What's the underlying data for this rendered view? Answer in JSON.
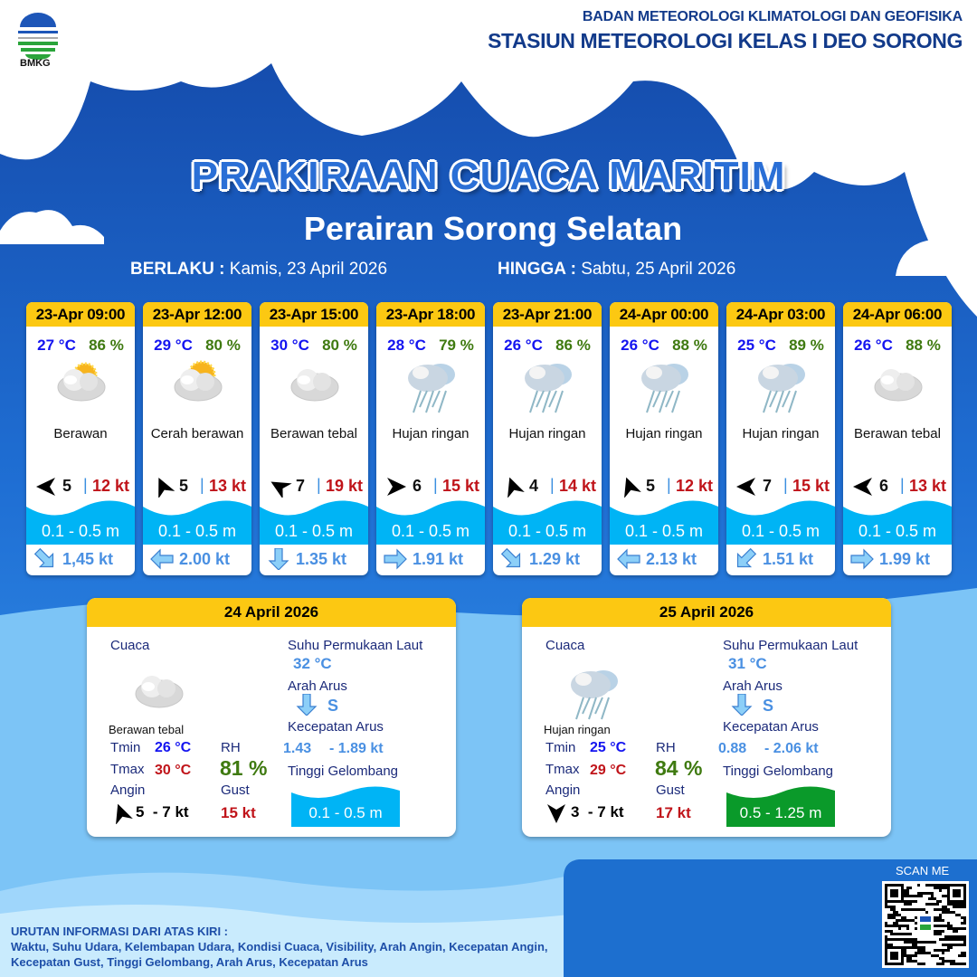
{
  "header": {
    "org_line1": "BADAN METEOROLOGI KLIMATOLOGI DAN GEOFISIKA",
    "org_line2": "STASIUN METEOROLOGI KELAS I DEO SORONG",
    "logo_text": "BMKG"
  },
  "title": "PRAKIRAAN CUACA MARITIM",
  "subtitle": "Perairan Sorong Selatan",
  "validity": {
    "from_label": "BERLAKU :",
    "from_value": "Kamis, 23 April 2026",
    "until_label": "HINGGA :",
    "until_value": "Sabtu, 25 April 2026"
  },
  "colors": {
    "header_yellow": "#fcc812",
    "temp": "#1414f0",
    "humidity": "#3f7a10",
    "gust": "#c0141a",
    "wave_low": "#00b4f5",
    "wave_moderate": "#0a9a2a",
    "current": "#4a90e2"
  },
  "forecasts": [
    {
      "time": "23-Apr 09:00",
      "temp": "27 °C",
      "rh": "86 %",
      "icon": "partly-cloudy",
      "weather": "Berawan",
      "wind_dir_deg": 180,
      "wind": "5",
      "gust": "12 kt",
      "wave": "0.1 - 0.5 m",
      "current_dir": "arrow-down-right",
      "current": "1,45 kt"
    },
    {
      "time": "23-Apr 12:00",
      "temp": "29 °C",
      "rh": "80 %",
      "icon": "sunny-cloudy",
      "weather": "Cerah berawan",
      "wind_dir_deg": -115,
      "wind": "5",
      "gust": "13 kt",
      "wave": "0.1 - 0.5 m",
      "current_dir": "arrow-left",
      "current": "2.00 kt"
    },
    {
      "time": "23-Apr 15:00",
      "temp": "30 °C",
      "rh": "80 %",
      "icon": "cloud",
      "weather": "Berawan tebal",
      "wind_dir_deg": -150,
      "wind": "7",
      "gust": "19 kt",
      "wave": "0.1 - 0.5 m",
      "current_dir": "arrow-down",
      "current": "1.35 kt"
    },
    {
      "time": "23-Apr 18:00",
      "temp": "28 °C",
      "rh": "79 %",
      "icon": "rain",
      "weather": "Hujan ringan",
      "wind_dir_deg": 0,
      "wind": "6",
      "gust": "15 kt",
      "wave": "0.1 - 0.5 m",
      "current_dir": "arrow-right",
      "current": "1.91 kt"
    },
    {
      "time": "23-Apr 21:00",
      "temp": "26 °C",
      "rh": "86 %",
      "icon": "rain",
      "weather": "Hujan ringan",
      "wind_dir_deg": -110,
      "wind": "4",
      "gust": "14 kt",
      "wave": "0.1 - 0.5 m",
      "current_dir": "arrow-down-right",
      "current": "1.29 kt"
    },
    {
      "time": "24-Apr 00:00",
      "temp": "26 °C",
      "rh": "88 %",
      "icon": "rain",
      "weather": "Hujan ringan",
      "wind_dir_deg": -110,
      "wind": "5",
      "gust": "12 kt",
      "wave": "0.1 - 0.5 m",
      "current_dir": "arrow-left",
      "current": "2.13 kt"
    },
    {
      "time": "24-Apr 03:00",
      "temp": "25 °C",
      "rh": "89 %",
      "icon": "rain",
      "weather": "Hujan ringan",
      "wind_dir_deg": 180,
      "wind": "7",
      "gust": "15 kt",
      "wave": "0.1 - 0.5 m",
      "current_dir": "arrow-down-left",
      "current": "1.51 kt"
    },
    {
      "time": "24-Apr 06:00",
      "temp": "26 °C",
      "rh": "88 %",
      "icon": "cloud",
      "weather": "Berawan tebal",
      "wind_dir_deg": 180,
      "wind": "6",
      "gust": "13 kt",
      "wave": "0.1 - 0.5 m",
      "current_dir": "arrow-right",
      "current": "1.99 kt"
    }
  ],
  "labels": {
    "weather": "Cuaca",
    "sst": "Suhu Permukaan Laut",
    "current_dir": "Arah Arus",
    "current_speed": "Kecepatan Arus",
    "wave": "Tinggi Gelombang",
    "tmin": "Tmin",
    "tmax": "Tmax",
    "rh": "RH",
    "wind": "Angin",
    "gust": "Gust"
  },
  "daily": [
    {
      "date": "24 April 2026",
      "icon": "cloud",
      "weather": "Berawan tebal",
      "tmin": "26 °C",
      "tmax": "30 °C",
      "rh": "81 %",
      "wind_dir_deg": -110,
      "wind": "5  - 7 kt",
      "gust": "15 kt",
      "sst": "32 °C",
      "current_dir": "S",
      "current_min": "1.43",
      "current_max": "- 1.89 kt",
      "wave": "0.1 - 0.5 m",
      "wave_color": "#00b4f5"
    },
    {
      "date": "25 April 2026",
      "icon": "rain",
      "weather": "Hujan ringan",
      "tmin": "25 °C",
      "tmax": "29 °C",
      "rh": "84 %",
      "wind_dir_deg": 90,
      "wind": "3  - 7 kt",
      "gust": "17 kt",
      "sst": "31 °C",
      "current_dir": "S",
      "current_min": "0.88",
      "current_max": "- 2.06 kt",
      "wave": "0.5 - 1.25 m",
      "wave_color": "#0a9a2a"
    }
  ],
  "footer": {
    "heading": "URUTAN INFORMASI DARI ATAS KIRI :",
    "text": "Waktu, Suhu Udara, Kelembapan Udara, Kondisi Cuaca, Visibility, Arah Angin, Kecepatan Angin, Kecepatan Gust, Tinggi Gelombang, Arah Arus, Kecepatan Arus",
    "scan_label": "SCAN ME"
  }
}
